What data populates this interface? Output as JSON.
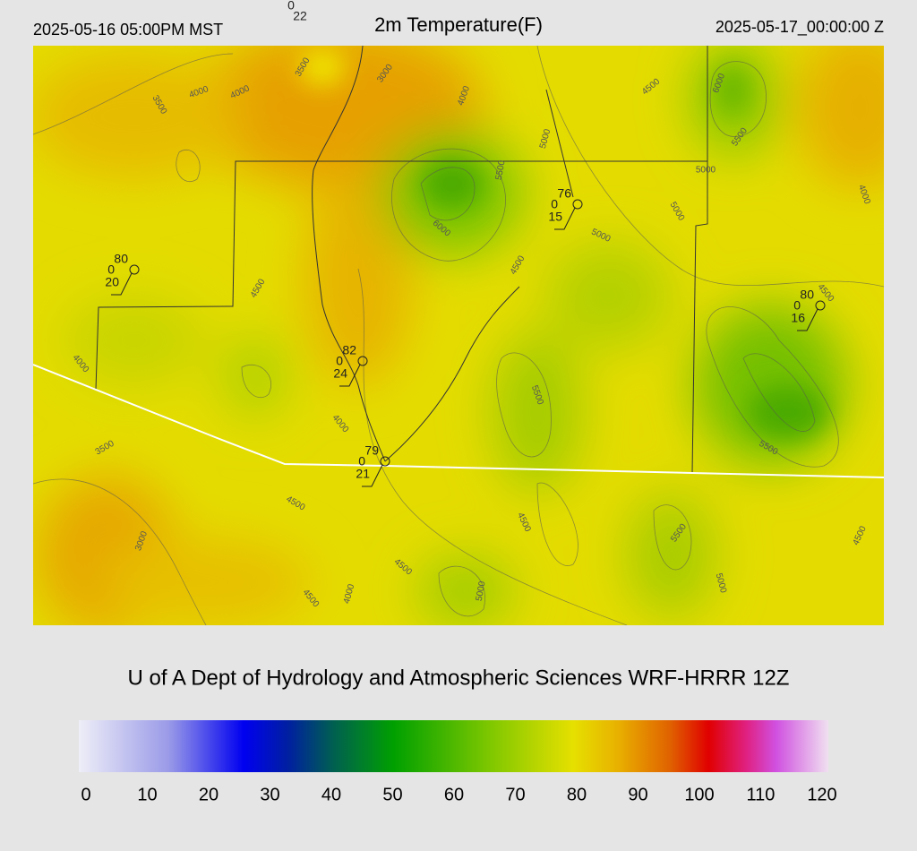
{
  "header": {
    "left": "2025-05-16 05:00PM MST",
    "title": "2m Temperature(F)",
    "right": "2025-05-17_00:00:00 Z"
  },
  "stations": [
    {
      "code": 0,
      "dewpoint": 22
    },
    {
      "temperature": 80,
      "code": 0,
      "dewpoint": 20
    },
    {
      "temperature": 76,
      "code": 0,
      "dewpoint": 15
    },
    {
      "temperature": 80,
      "code": 0,
      "dewpoint": 16
    },
    {
      "temperature": 82,
      "code": 0,
      "dewpoint": 24
    },
    {
      "temperature": 79,
      "code": 0,
      "dewpoint": 21
    }
  ],
  "contour_labels": [
    3500,
    3000,
    4000,
    4000,
    3500,
    4000,
    4500,
    6000,
    5000,
    5500,
    5500,
    5000,
    6000,
    5000,
    5000,
    4000,
    4500,
    4500,
    4500,
    4000,
    5500,
    4000,
    3500,
    5500,
    4500,
    4500,
    5500,
    3000,
    4500,
    4500,
    4000,
    4500,
    5000,
    5000
  ],
  "credit": "U of A Dept of Hydrology and Atmospheric Sciences WRF-HRRR 12Z",
  "colorbar": {
    "ticks": [
      0,
      10,
      20,
      30,
      40,
      50,
      60,
      70,
      80,
      90,
      100,
      110,
      120
    ]
  }
}
